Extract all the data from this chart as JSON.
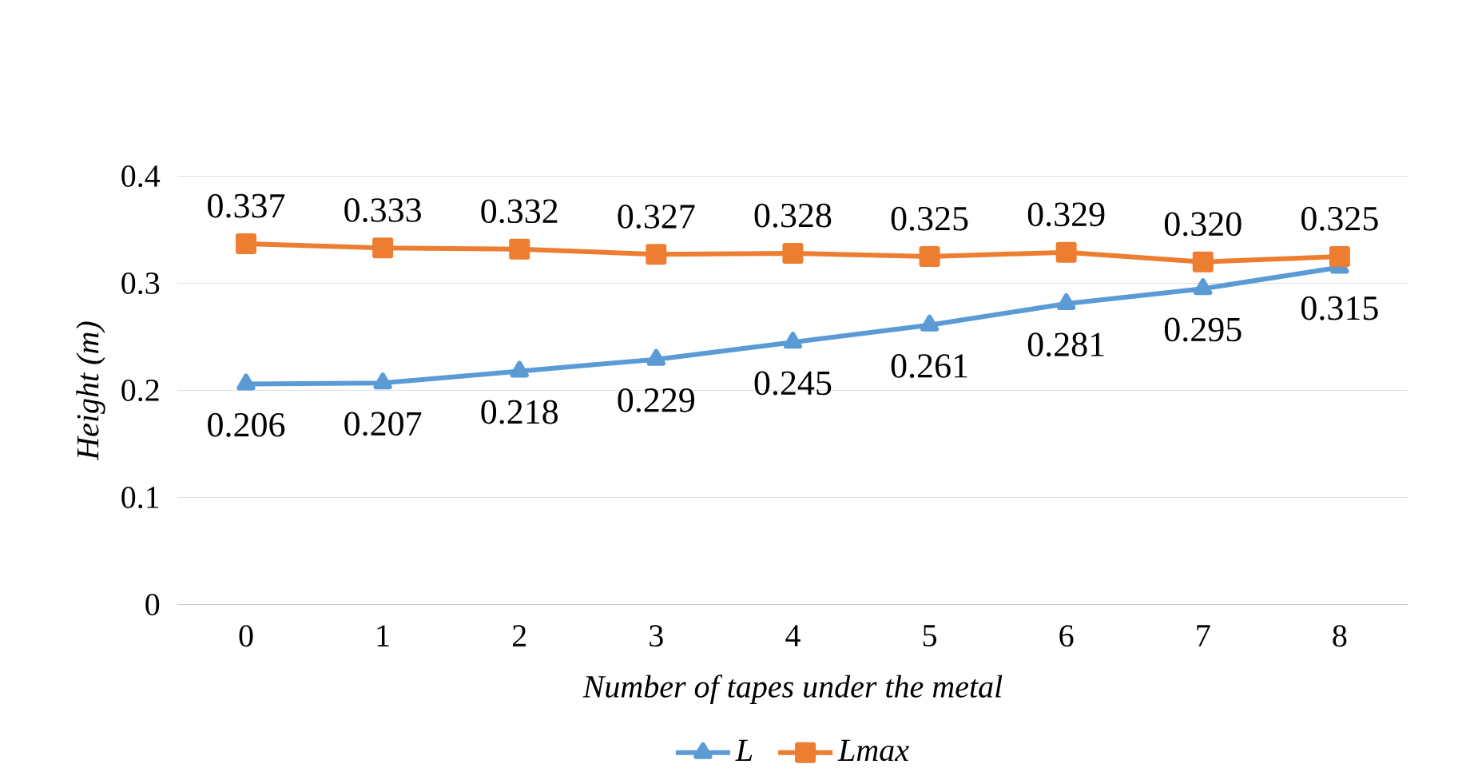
{
  "chart_data": {
    "type": "line",
    "xlabel": "Number of tapes under the metal",
    "ylabel": "Height (m)",
    "categories": [
      "0",
      "1",
      "2",
      "3",
      "4",
      "5",
      "6",
      "7",
      "8"
    ],
    "series": [
      {
        "name": "L",
        "color": "#5b9bd5",
        "marker": "triangle",
        "values": [
          0.206,
          0.207,
          0.218,
          0.229,
          0.245,
          0.261,
          0.281,
          0.295,
          0.315
        ],
        "value_labels": [
          "0.206",
          "0.207",
          "0.218",
          "0.229",
          "0.245",
          "0.261",
          "0.281",
          "0.295",
          "0.315"
        ]
      },
      {
        "name": "Lmax",
        "color": "#ed7d31",
        "marker": "square",
        "values": [
          0.337,
          0.333,
          0.332,
          0.327,
          0.328,
          0.325,
          0.329,
          0.32,
          0.325
        ],
        "value_labels": [
          "0.337",
          "0.333",
          "0.332",
          "0.327",
          "0.328",
          "0.325",
          "0.329",
          "0.320",
          "0.325"
        ]
      }
    ],
    "ylim": [
      0,
      0.4
    ],
    "yticks": [
      0,
      0.1,
      0.2,
      0.3,
      0.4
    ],
    "grid": "y",
    "legend": "bottom"
  }
}
